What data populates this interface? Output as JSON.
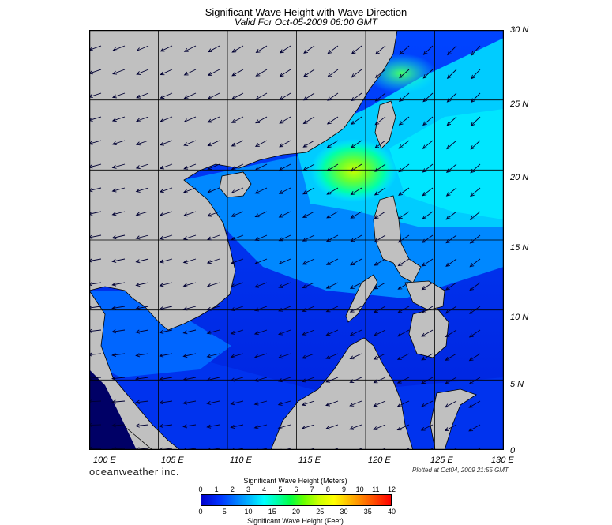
{
  "header": {
    "title": "Significant Wave Height with Wave Direction",
    "subtitle": "Valid For Oct-05-2009 06:00 GMT"
  },
  "map": {
    "lat_labels": [
      "30 N",
      "25 N",
      "20 N",
      "15 N",
      "10 N",
      "5 N",
      "0"
    ],
    "lon_labels": [
      "100 E",
      "105 E",
      "110 E",
      "115 E",
      "120 E",
      "125 E",
      "130 E"
    ],
    "extent": {
      "lon_min": 100,
      "lon_max": 130,
      "lat_min": 0,
      "lat_max": 30
    },
    "land_color": "#c0c0c0",
    "grid_color": "#000000"
  },
  "footer": {
    "brand": "oceanweather inc.",
    "plotted": "Plotted at Oct04, 2009 21:55 GMT"
  },
  "colorbar": {
    "title_top": "Significant Wave Height (Meters)",
    "title_bottom": "Significant Wave Height (Feet)",
    "meters_ticks": [
      "0",
      "1",
      "2",
      "3",
      "4",
      "5",
      "6",
      "7",
      "8",
      "9",
      "10",
      "11",
      "12"
    ],
    "feet_ticks": [
      "0",
      "5",
      "10",
      "15",
      "20",
      "25",
      "30",
      "35",
      "40"
    ],
    "colors": [
      "#0000cc",
      "#0033ff",
      "#0077ff",
      "#00bbff",
      "#00ffff",
      "#00ffaa",
      "#00ff44",
      "#66ff00",
      "#ccff00",
      "#ffff00",
      "#ffaa00",
      "#ff5500",
      "#ff0000"
    ]
  }
}
